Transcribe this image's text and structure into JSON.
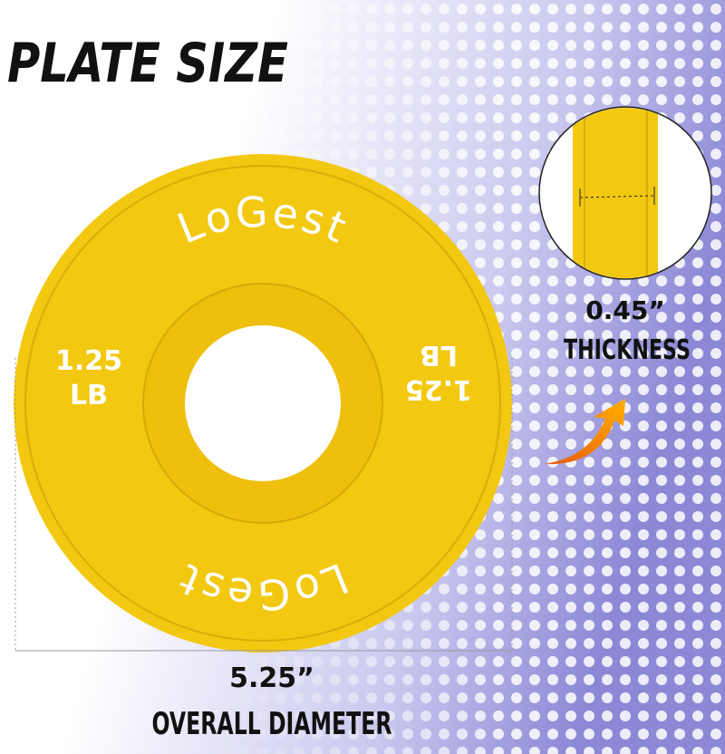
{
  "header": {
    "title": "PLATE SIZE"
  },
  "plate": {
    "brand_top": "LoGest",
    "brand_bottom": "LoGest",
    "weight_left": {
      "value": "1.25",
      "unit": "LB"
    },
    "weight_right": {
      "value": "1.25",
      "unit": "LB"
    }
  },
  "thickness": {
    "value": "0.45”",
    "label": "THICKNESS"
  },
  "diameter": {
    "value": "5.25”",
    "label": "OVERALL DIAMETER"
  }
}
